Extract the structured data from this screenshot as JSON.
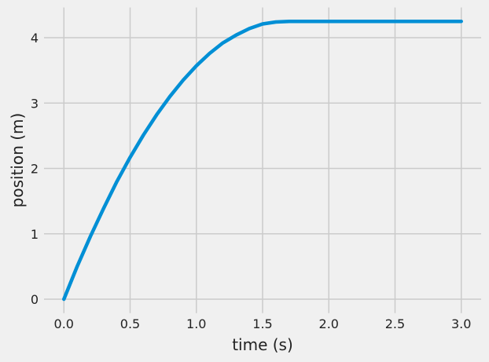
{
  "chart_data": {
    "type": "line",
    "x_label": "time (s)",
    "y_label": "position (m)",
    "x": [
      0,
      0.1,
      0.2,
      0.3,
      0.4,
      0.5,
      0.6,
      0.7,
      0.8,
      0.9,
      1.0,
      1.1,
      1.2,
      1.3,
      1.4,
      1.5,
      1.6,
      1.7,
      2.0,
      2.5,
      3.0
    ],
    "series": [
      {
        "color": "#008fd5",
        "values": [
          0,
          0.5,
          0.96,
          1.39,
          1.8,
          2.17,
          2.51,
          2.82,
          3.1,
          3.35,
          3.57,
          3.76,
          3.92,
          4.04,
          4.14,
          4.21,
          4.24,
          4.25,
          4.25,
          4.25,
          4.25
        ]
      }
    ],
    "xlim": [
      -0.15,
      3.15
    ],
    "ylim": [
      -0.2125,
      4.4625
    ],
    "xticks": [
      {
        "value": 0,
        "label": "0.0"
      },
      {
        "value": 0.5,
        "label": "0.5"
      },
      {
        "value": 1,
        "label": "1.0"
      },
      {
        "value": 1.5,
        "label": "1.5"
      },
      {
        "value": 2,
        "label": "2.0"
      },
      {
        "value": 2.5,
        "label": "2.5"
      },
      {
        "value": 3,
        "label": "3.0"
      }
    ],
    "yticks": [
      0,
      1,
      2,
      3,
      4
    ],
    "grid": true
  }
}
